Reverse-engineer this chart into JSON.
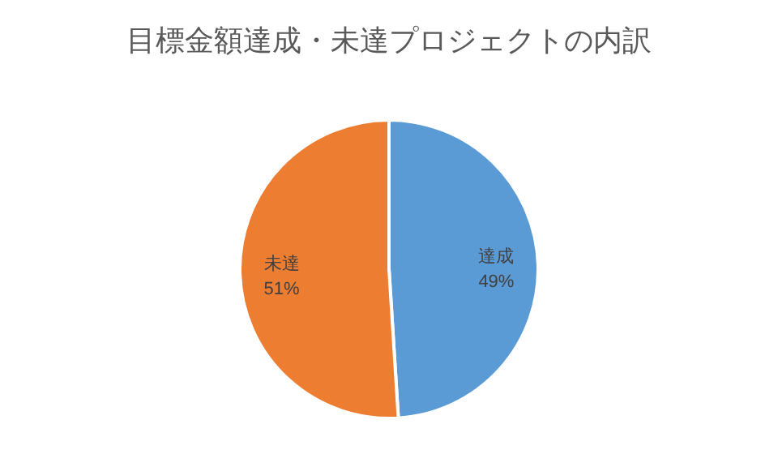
{
  "chart_data": {
    "type": "pie",
    "title": "目標金額達成・未達プロジェクトの内訳",
    "categories": [
      "達成",
      "未達"
    ],
    "values": [
      49,
      51
    ],
    "colors": [
      "#5b9bd5",
      "#ed7d31"
    ],
    "value_labels": [
      "49%",
      "51%"
    ]
  }
}
